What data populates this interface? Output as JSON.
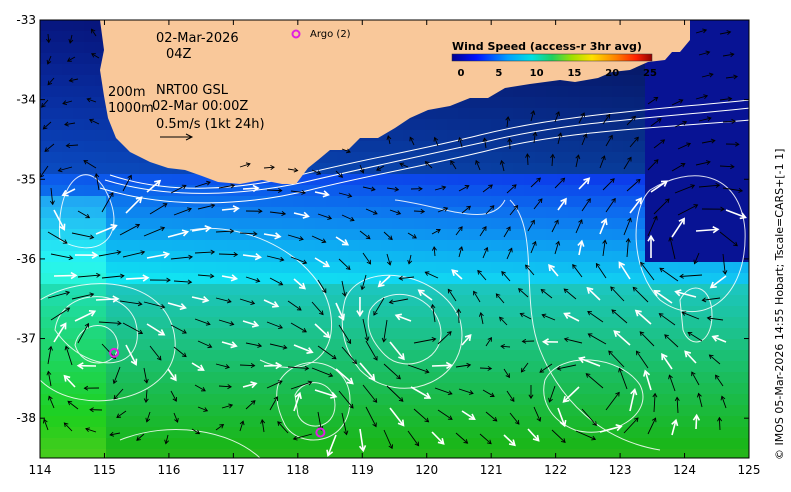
{
  "map": {
    "date": "02-Mar-2026",
    "hour": "04Z",
    "depth_top": "200m",
    "depth_bottom": "1000m",
    "product": "NRT00 GSL",
    "product_time": "02-Mar 00:00Z",
    "scale_text": "0.5m/s (1kt 24h)",
    "argo_label": "Argo (2)",
    "credit": "© IMOS 05-Mar-2026 14:55 Hobart; Tscale=CARS+[-1 1]",
    "x_ticks": [
      "114",
      "115",
      "116",
      "117",
      "118",
      "119",
      "120",
      "121",
      "122",
      "123",
      "124",
      "125"
    ],
    "y_ticks": [
      "-33",
      "-34",
      "-35",
      "-36",
      "-37",
      "-38"
    ],
    "lon_range": [
      114,
      125
    ],
    "lat_range": [
      -38.5,
      -33
    ],
    "argo_floats": [
      {
        "lon": 115.15,
        "lat": -37.18
      },
      {
        "lon": 118.35,
        "lat": -38.18
      }
    ],
    "colors": {
      "land": "#f9c89a",
      "arrow": "#ffffff",
      "argo": "#e020e0",
      "contour": "#ffffff"
    }
  },
  "colorbar": {
    "title": "Wind Speed (access-r 3hr avg)",
    "ticks": [
      "0",
      "5",
      "10",
      "15",
      "20",
      "25"
    ],
    "range": [
      0,
      25
    ]
  }
}
